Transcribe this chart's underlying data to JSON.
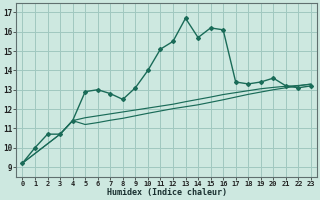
{
  "title": "",
  "xlabel": "Humidex (Indice chaleur)",
  "background_color": "#cde8e0",
  "grid_color": "#a0c8c0",
  "line_color": "#1a6b58",
  "xlim": [
    -0.5,
    23.5
  ],
  "ylim": [
    8.5,
    17.5
  ],
  "xticks": [
    0,
    1,
    2,
    3,
    4,
    5,
    6,
    7,
    8,
    9,
    10,
    11,
    12,
    13,
    14,
    15,
    16,
    17,
    18,
    19,
    20,
    21,
    22,
    23
  ],
  "yticks": [
    9,
    10,
    11,
    12,
    13,
    14,
    15,
    16,
    17
  ],
  "series1_x": [
    0,
    1,
    2,
    3,
    4,
    5,
    6,
    7,
    8,
    9,
    10,
    11,
    12,
    13,
    14,
    15,
    16,
    17,
    18,
    19,
    20,
    21,
    22,
    23
  ],
  "series1_y": [
    9.2,
    10.0,
    10.7,
    10.7,
    11.4,
    12.9,
    13.0,
    12.8,
    12.5,
    13.1,
    14.0,
    15.1,
    15.5,
    16.7,
    15.7,
    16.2,
    16.1,
    13.4,
    13.3,
    13.4,
    13.6,
    13.2,
    13.1,
    13.2
  ],
  "series2_x": [
    0,
    3,
    4,
    5,
    6,
    7,
    8,
    9,
    10,
    11,
    12,
    13,
    14,
    15,
    16,
    17,
    18,
    19,
    20,
    21,
    22,
    23
  ],
  "series2_y": [
    9.2,
    10.7,
    11.4,
    11.55,
    11.65,
    11.75,
    11.85,
    11.95,
    12.05,
    12.15,
    12.25,
    12.38,
    12.5,
    12.62,
    12.75,
    12.85,
    12.95,
    13.05,
    13.12,
    13.18,
    13.22,
    13.28
  ],
  "series3_x": [
    0,
    3,
    4,
    5,
    6,
    7,
    8,
    9,
    10,
    11,
    12,
    13,
    14,
    15,
    16,
    17,
    18,
    19,
    20,
    21,
    22,
    23
  ],
  "series3_y": [
    9.2,
    10.7,
    11.4,
    11.2,
    11.3,
    11.42,
    11.52,
    11.65,
    11.78,
    11.9,
    12.02,
    12.12,
    12.22,
    12.35,
    12.48,
    12.62,
    12.76,
    12.88,
    13.0,
    13.1,
    13.2,
    13.3
  ]
}
